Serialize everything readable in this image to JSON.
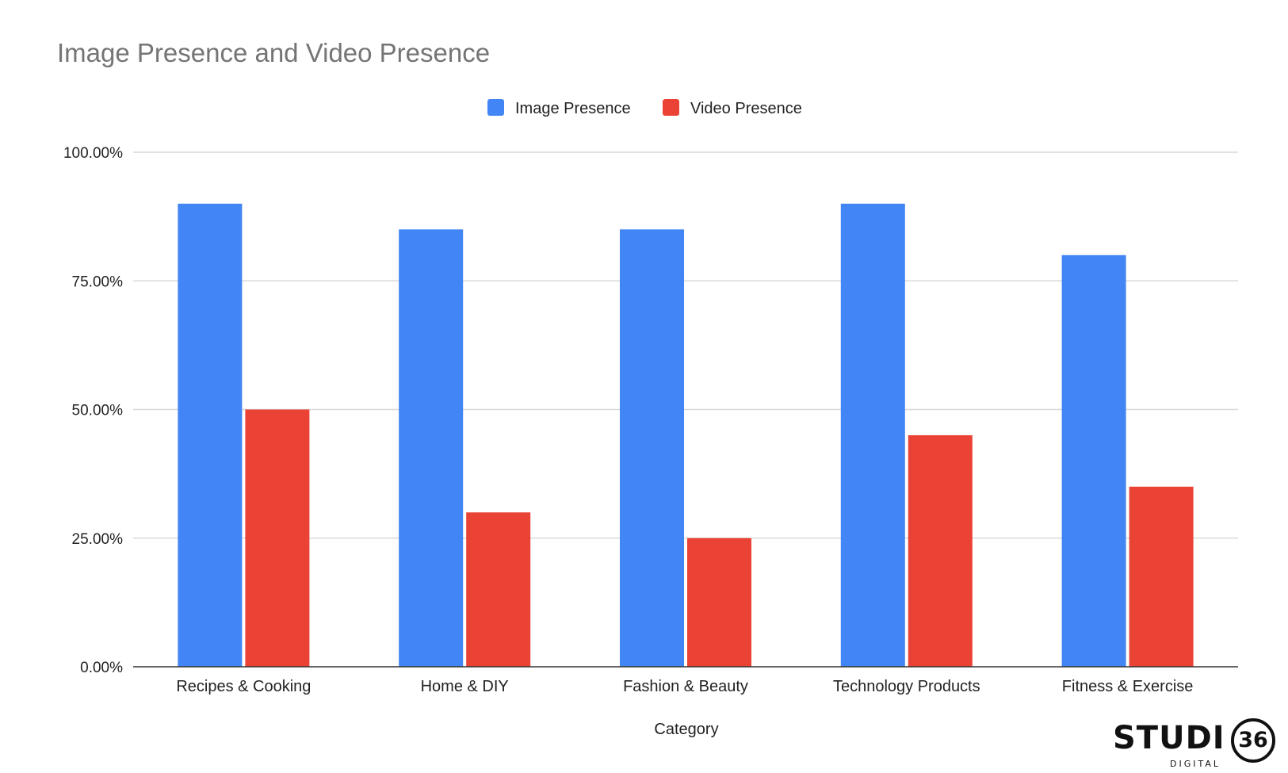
{
  "chart_data": {
    "type": "bar",
    "title": "Image Presence and Video Presence",
    "xlabel": "Category",
    "ylabel": "",
    "ylim": [
      0,
      100
    ],
    "yticks": [
      "0.00%",
      "25.00%",
      "50.00%",
      "75.00%",
      "100.00%"
    ],
    "ytick_values": [
      0,
      25,
      50,
      75,
      100
    ],
    "grid": true,
    "legend_position": "top-center",
    "categories": [
      "Recipes & Cooking",
      "Home & DIY",
      "Fashion & Beauty",
      "Technology Products",
      "Fitness & Exercise"
    ],
    "series": [
      {
        "name": "Image Presence",
        "color": "#4285f4",
        "values": [
          90,
          85,
          85,
          90,
          80
        ]
      },
      {
        "name": "Video Presence",
        "color": "#ea4335",
        "values": [
          50,
          30,
          25,
          45,
          35
        ]
      }
    ]
  },
  "logo": {
    "word": "STUDI",
    "number": "36",
    "sub": "DIGITAL"
  }
}
